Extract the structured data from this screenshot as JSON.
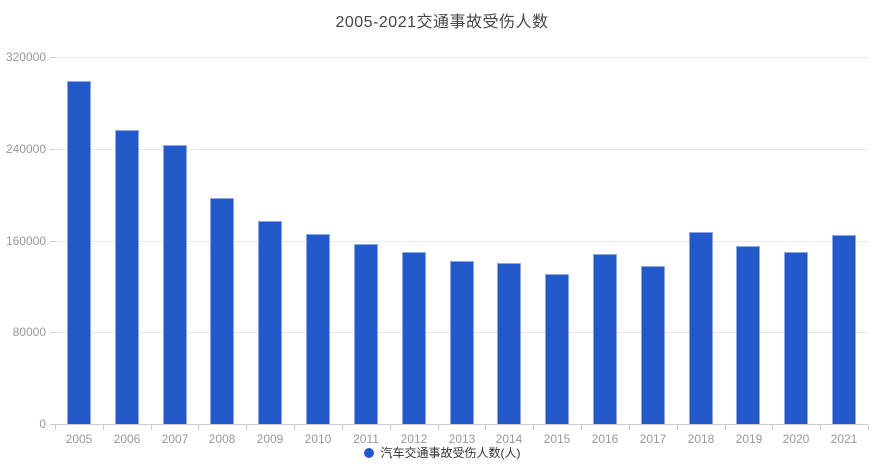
{
  "page_title": "2005-2021交通事故受伤人数",
  "chart_data": {
    "type": "bar",
    "title": "2005-2021交通事故受伤人数",
    "categories": [
      "2005",
      "2006",
      "2007",
      "2008",
      "2009",
      "2010",
      "2011",
      "2012",
      "2013",
      "2014",
      "2015",
      "2016",
      "2017",
      "2018",
      "2019",
      "2020",
      "2021"
    ],
    "values": [
      299000,
      256000,
      243000,
      197000,
      177000,
      166000,
      157000,
      150000,
      142000,
      140000,
      131000,
      148000,
      138000,
      167000,
      155000,
      150000,
      165000
    ],
    "series_name": "汽车交通事故受伤人数(人)",
    "xlabel": "",
    "ylabel": "",
    "ylim": [
      0,
      320000
    ],
    "yticks": [
      0,
      80000,
      160000,
      240000,
      320000
    ],
    "grid": true,
    "legend_position": "bottom",
    "colors": {
      "bar_fill": "#2258C8",
      "bar_border": "#8FA9E0",
      "title_text": "#464646",
      "axis_label": "#999999",
      "legend_text": "#333333",
      "gridline": "#E9E9E9",
      "axis_line": "#CCCCCC"
    }
  }
}
